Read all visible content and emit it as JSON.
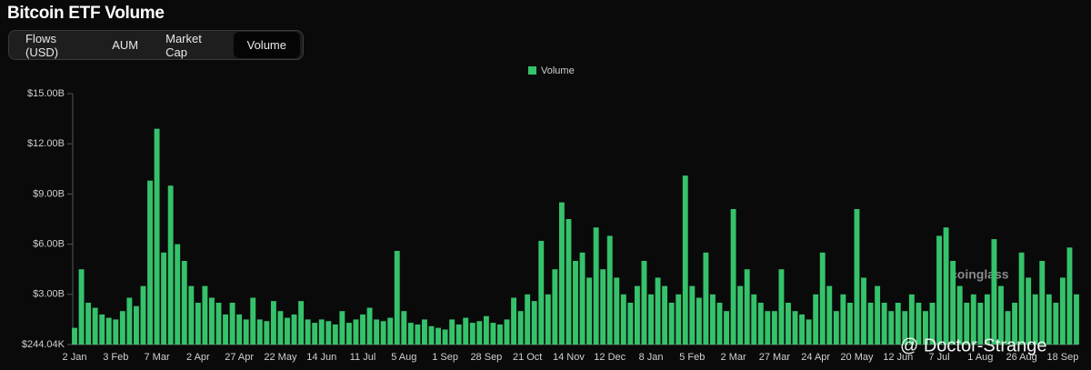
{
  "header": {
    "title": "Bitcoin ETF Volume",
    "tabs": [
      "Flows (USD)",
      "AUM",
      "Market Cap",
      "Volume"
    ]
  },
  "watermarks": {
    "brand": "coinglass",
    "author": "@ Doctor-Strange"
  },
  "chart_data": {
    "type": "bar",
    "series": [
      {
        "name": "Volume",
        "color": "#35c26b",
        "values": [
          1.0,
          4.5,
          2.5,
          2.2,
          1.8,
          1.6,
          1.5,
          2.0,
          2.8,
          2.3,
          3.5,
          9.8,
          12.9,
          5.5,
          9.5,
          6.0,
          5.0,
          3.5,
          2.5,
          3.5,
          2.8,
          2.5,
          1.8,
          2.5,
          1.8,
          1.5,
          2.8,
          1.5,
          1.4,
          2.6,
          2.0,
          1.6,
          1.8,
          2.6,
          1.5,
          1.3,
          1.5,
          1.4,
          1.2,
          2.0,
          1.3,
          1.5,
          1.8,
          2.2,
          1.5,
          1.4,
          1.6,
          5.6,
          2.0,
          1.3,
          1.2,
          1.5,
          1.1,
          1.0,
          0.9,
          1.5,
          1.2,
          1.6,
          1.3,
          1.4,
          1.7,
          1.3,
          1.2,
          1.5,
          2.8,
          2.0,
          3.0,
          2.6,
          6.2,
          3.0,
          4.5,
          8.5,
          7.5,
          5.0,
          5.5,
          4.0,
          7.0,
          4.5,
          6.5,
          4.0,
          3.0,
          2.5,
          3.5,
          5.0,
          3.0,
          4.0,
          3.5,
          2.5,
          3.0,
          10.1,
          3.5,
          2.8,
          5.5,
          3.0,
          2.5,
          2.0,
          8.1,
          3.5,
          4.5,
          3.0,
          2.5,
          2.0,
          2.0,
          4.5,
          2.5,
          2.0,
          1.8,
          1.5,
          3.0,
          5.5,
          3.5,
          2.0,
          3.0,
          2.5,
          8.1,
          4.0,
          2.5,
          3.5,
          2.5,
          2.0,
          2.5,
          2.0,
          3.0,
          2.5,
          2.0,
          2.5,
          6.5,
          7.0,
          5.0,
          3.5,
          2.5,
          3.0,
          2.5,
          3.0,
          6.3,
          3.5,
          2.0,
          2.5,
          5.5,
          4.0,
          3.0,
          5.0,
          3.0,
          2.5,
          4.0,
          5.8,
          3.0
        ]
      }
    ],
    "categories": [
      "2 Jan",
      null,
      null,
      null,
      null,
      null,
      "3 Feb",
      null,
      null,
      null,
      null,
      null,
      "7 Mar",
      null,
      null,
      null,
      null,
      null,
      "2 Apr",
      null,
      null,
      null,
      null,
      null,
      "27 Apr",
      null,
      null,
      null,
      null,
      null,
      "22 May",
      null,
      null,
      null,
      null,
      null,
      "14 Jun",
      null,
      null,
      null,
      null,
      null,
      "11 Jul",
      null,
      null,
      null,
      null,
      null,
      "5 Aug",
      null,
      null,
      null,
      null,
      null,
      "1 Sep",
      null,
      null,
      null,
      null,
      null,
      "28 Sep",
      null,
      null,
      null,
      null,
      null,
      "21 Oct",
      null,
      null,
      null,
      null,
      null,
      "14 Nov",
      null,
      null,
      null,
      null,
      null,
      "12 Dec",
      null,
      null,
      null,
      null,
      null,
      "8 Jan",
      null,
      null,
      null,
      null,
      null,
      "5 Feb",
      null,
      null,
      null,
      null,
      null,
      "2 Mar",
      null,
      null,
      null,
      null,
      null,
      "27 Mar",
      null,
      null,
      null,
      null,
      null,
      "24 Apr",
      null,
      null,
      null,
      null,
      null,
      "20 May",
      null,
      null,
      null,
      null,
      null,
      "12 Jun",
      null,
      null,
      null,
      null,
      null,
      "7 Jul",
      null,
      null,
      null,
      null,
      null,
      "1 Aug",
      null,
      null,
      null,
      null,
      null,
      "26 Aug",
      null,
      null,
      null,
      null,
      null,
      "18 Sep",
      null,
      null
    ],
    "ylim": [
      0.00024404,
      15
    ],
    "yticks": [
      {
        "value": 0.00024404,
        "label": "$244.04K"
      },
      {
        "value": 3,
        "label": "$3.00B"
      },
      {
        "value": 6,
        "label": "$6.00B"
      },
      {
        "value": 9,
        "label": "$9.00B"
      },
      {
        "value": 12,
        "label": "$12.00B"
      },
      {
        "value": 15,
        "label": "$15.00B"
      }
    ],
    "grid": false,
    "legend": "top"
  }
}
